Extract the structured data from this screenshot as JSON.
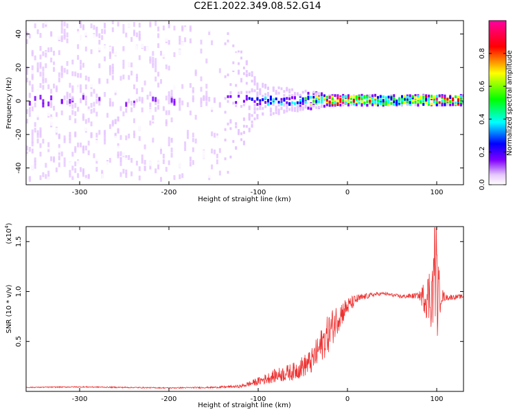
{
  "figure": {
    "title": "C2E1.2022.349.08.52.G14"
  },
  "chart_data": [
    {
      "type": "heatmap",
      "title": "",
      "xlabel": "Height of straight line (km)",
      "ylabel": "Frequency (Hz)",
      "xlim": [
        -360,
        130
      ],
      "ylim": [
        -50,
        48
      ],
      "x_ticks": [
        -300,
        -200,
        -100,
        0,
        100
      ],
      "x_tick_labels": [
        "-300",
        "-200",
        "-100",
        "0",
        "100"
      ],
      "y_ticks": [
        -40,
        -20,
        0,
        20,
        40
      ],
      "y_tick_labels": [
        "-40",
        "-20",
        "0",
        "20",
        "40"
      ],
      "grid": false,
      "colorbar": {
        "label": "Normalized spectral amplitude",
        "range": [
          0,
          1
        ],
        "ticks": [
          0.0,
          0.2,
          0.4,
          0.6,
          0.8
        ],
        "tick_labels": [
          "0.0",
          "0.2",
          "0.4",
          "0.6",
          "0.8"
        ],
        "colors": [
          "#ffffff",
          "#e6c8ff",
          "#8000ff",
          "#0000ff",
          "#00ffff",
          "#00ff00",
          "#ffff00",
          "#ff0000",
          "#ff00a0"
        ]
      },
      "description_points": [
        {
          "x": -360,
          "y_spread": 48,
          "amplitude": 0.2
        },
        {
          "x": -140,
          "y_spread": 48,
          "amplitude": 0.15
        },
        {
          "x": -100,
          "y_spread": 10,
          "amplitude": 0.4
        },
        {
          "x": -50,
          "y_spread": 6,
          "amplitude": 0.45
        },
        {
          "x": -20,
          "y_spread": 3,
          "amplitude": 0.85
        },
        {
          "x": 0,
          "y_spread": 3,
          "amplitude": 0.75
        },
        {
          "x": 60,
          "y_spread": 3,
          "amplitude": 0.55
        },
        {
          "x": 100,
          "y_spread": 3,
          "amplitude": 0.8
        },
        {
          "x": 130,
          "y_spread": 3,
          "amplitude": 0.7
        }
      ]
    },
    {
      "type": "line",
      "title": "",
      "xlabel": "Height of straight line (km)",
      "ylabel": "SNR (10 * v/v)",
      "y_multiplier_label": "(x10",
      "y_multiplier_exp": "4",
      "y_multiplier_close": ")",
      "xlim": [
        -360,
        130
      ],
      "ylim": [
        0,
        16500
      ],
      "x_ticks": [
        -300,
        -200,
        -100,
        0,
        100
      ],
      "x_tick_labels": [
        "-300",
        "-200",
        "-100",
        "0",
        "100"
      ],
      "y_ticks": [
        5000,
        10000,
        15000
      ],
      "y_tick_labels": [
        "0.5",
        "1.0",
        "1.5"
      ],
      "grid": false,
      "line_color": "#ee3030",
      "series": [
        {
          "x": [
            -360,
            -300,
            -250,
            -200,
            -150,
            -120,
            -100,
            -80,
            -60,
            -40,
            -30,
            -20,
            -10,
            0,
            10,
            20,
            30,
            40,
            60,
            80,
            90,
            95,
            100,
            105,
            110,
            130
          ],
          "y": [
            400,
            450,
            400,
            350,
            400,
            500,
            1000,
            1600,
            2000,
            3000,
            4500,
            6000,
            7500,
            8500,
            9200,
            9500,
            9700,
            9800,
            9500,
            9600,
            9400,
            10000,
            9500,
            9600,
            9400,
            9500
          ],
          "noise": [
            50,
            60,
            60,
            50,
            80,
            150,
            400,
            700,
            900,
            1300,
            1700,
            2000,
            1500,
            900,
            500,
            300,
            200,
            150,
            200,
            300,
            2500,
            4000,
            5000,
            900,
            300,
            200
          ]
        }
      ]
    }
  ]
}
